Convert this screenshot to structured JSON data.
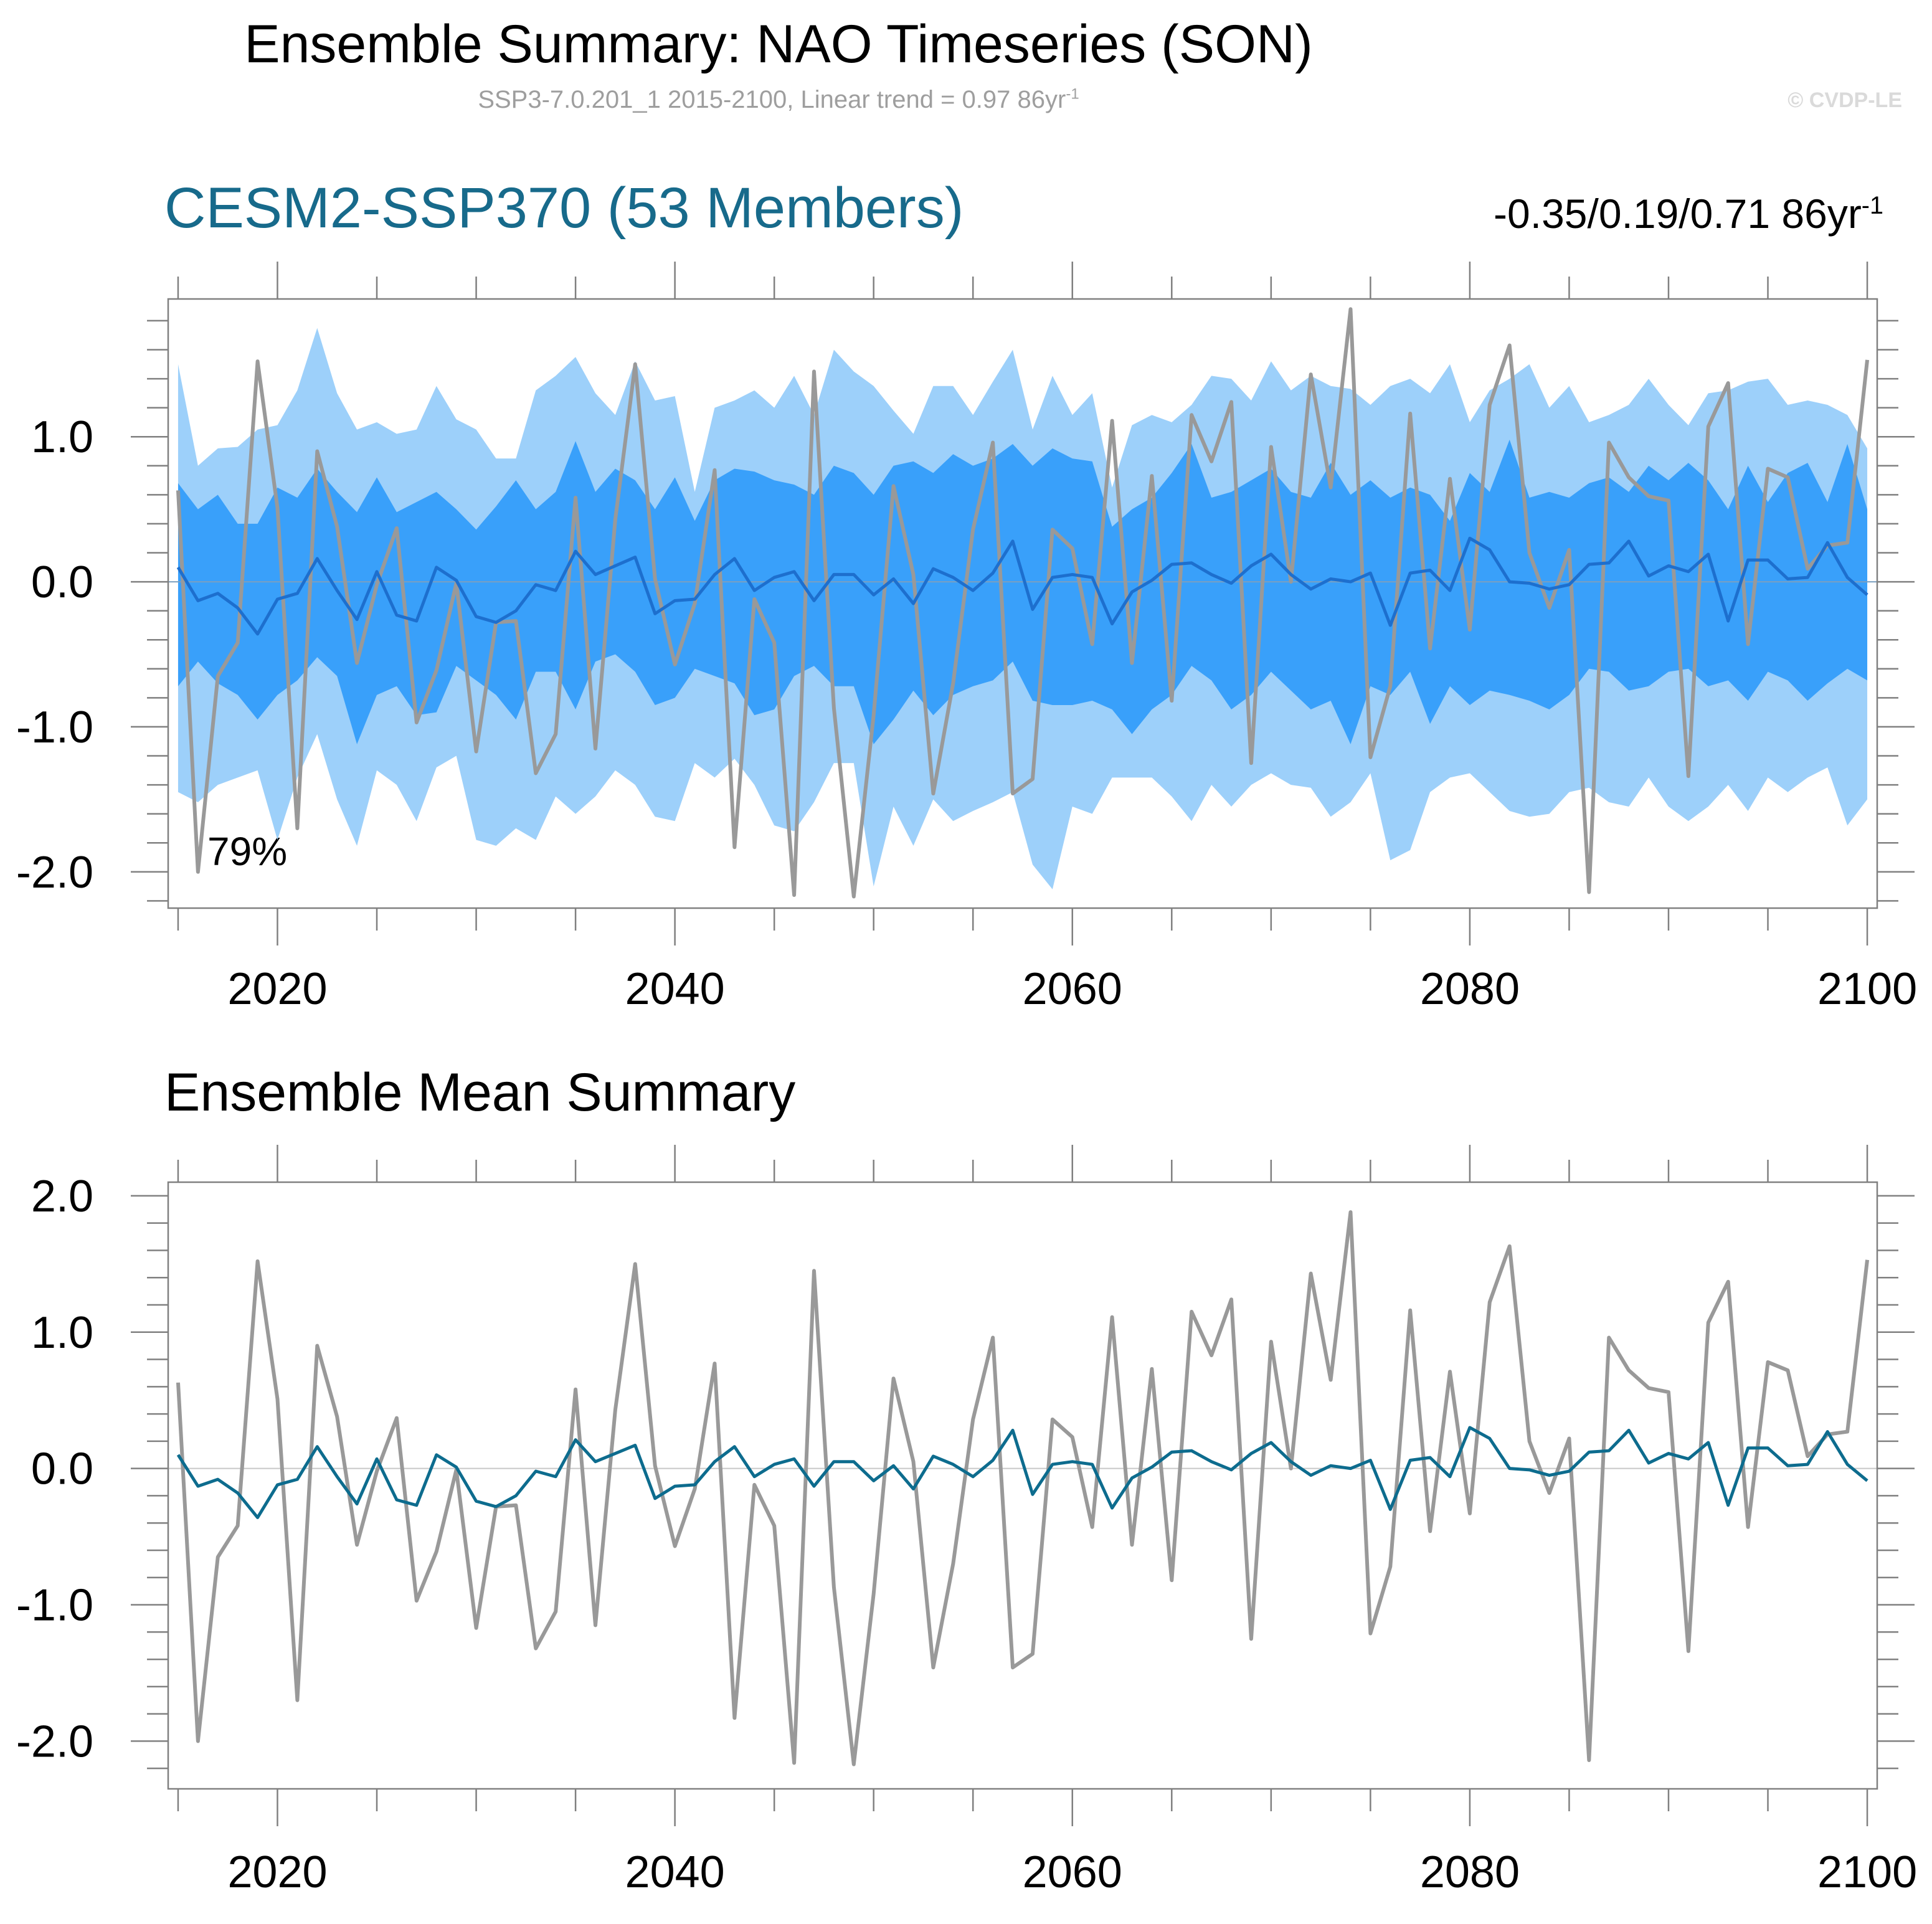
{
  "figure": {
    "title": "Ensemble Summary: NAO Timeseries (SON)",
    "subtitle": "SSP3-7.0.201_1 2015-2100, Linear trend = 0.97 86yr",
    "subtitle_unit_exp": "-1",
    "watermark": "© CVDP-LE"
  },
  "colors": {
    "band_outer": "#9dd0fa",
    "band_inner": "#39a0fa",
    "ens_mean_top": "#1d6fce",
    "ens_mean_bottom": "#0d6c8e",
    "obs": "#999999",
    "title_accent": "#176a8b"
  },
  "chart_data": [
    {
      "type": "area",
      "panel": "top",
      "title": "CESM2-SSP370 (53 Members)",
      "range_text": "-0.35/0.19/0.71 86yr",
      "range_unit_exp": "-1",
      "annotation": "79%",
      "x_tick_labels": [
        "2020",
        "2040",
        "2060",
        "2080",
        "2100"
      ],
      "y_tick_labels": [
        "1.0",
        "0.0",
        "-1.0",
        "-2.0"
      ],
      "x_ticks": [
        2020,
        2040,
        2060,
        2080,
        2100
      ],
      "y_ticks": [
        1.0,
        0.0,
        -1.0,
        -2.0
      ],
      "xlim": [
        2014.5,
        2100.5
      ],
      "ylim": [
        -2.25,
        1.95
      ],
      "x": [
        2015,
        2016,
        2017,
        2018,
        2019,
        2020,
        2021,
        2022,
        2023,
        2024,
        2025,
        2026,
        2027,
        2028,
        2029,
        2030,
        2031,
        2032,
        2033,
        2034,
        2035,
        2036,
        2037,
        2038,
        2039,
        2040,
        2041,
        2042,
        2043,
        2044,
        2045,
        2046,
        2047,
        2048,
        2049,
        2050,
        2051,
        2052,
        2053,
        2054,
        2055,
        2056,
        2057,
        2058,
        2059,
        2060,
        2061,
        2062,
        2063,
        2064,
        2065,
        2066,
        2067,
        2068,
        2069,
        2070,
        2071,
        2072,
        2073,
        2074,
        2075,
        2076,
        2077,
        2078,
        2079,
        2080,
        2081,
        2082,
        2083,
        2084,
        2085,
        2086,
        2087,
        2088,
        2089,
        2090,
        2091,
        2092,
        2093,
        2094,
        2095,
        2096,
        2097,
        2098,
        2099,
        2100
      ],
      "series": [
        {
          "name": "",
          "role": "outer band (min/max)",
          "upper": [
            1.5,
            0.8,
            0.92,
            0.93,
            1.05,
            1.08,
            1.32,
            1.75,
            1.3,
            1.05,
            1.1,
            1.02,
            1.05,
            1.35,
            1.12,
            1.05,
            0.85,
            0.85,
            1.32,
            1.42,
            1.55,
            1.3,
            1.15,
            1.52,
            1.25,
            1.28,
            0.62,
            1.2,
            1.25,
            1.32,
            1.2,
            1.42,
            1.15,
            1.6,
            1.45,
            1.35,
            1.18,
            1.02,
            1.35,
            1.35,
            1.15,
            1.38,
            1.6,
            1.05,
            1.42,
            1.15,
            1.3,
            0.65,
            1.08,
            1.15,
            1.1,
            1.22,
            1.42,
            1.4,
            1.25,
            1.52,
            1.32,
            1.42,
            1.35,
            1.33,
            1.22,
            1.35,
            1.4,
            1.3,
            1.5,
            1.1,
            1.32,
            1.4,
            1.5,
            1.2,
            1.35,
            1.1,
            1.15,
            1.22,
            1.4,
            1.22,
            1.08,
            1.3,
            1.32,
            1.38,
            1.4,
            1.22,
            1.25,
            1.22,
            1.15,
            0.92
          ],
          "lower": [
            -1.45,
            -1.52,
            -1.4,
            -1.35,
            -1.3,
            -1.78,
            -1.35,
            -1.05,
            -1.5,
            -1.82,
            -1.3,
            -1.4,
            -1.65,
            -1.28,
            -1.2,
            -1.78,
            -1.82,
            -1.7,
            -1.78,
            -1.48,
            -1.6,
            -1.48,
            -1.3,
            -1.4,
            -1.62,
            -1.65,
            -1.25,
            -1.35,
            -1.22,
            -1.4,
            -1.68,
            -1.72,
            -1.52,
            -1.25,
            -1.25,
            -2.1,
            -1.55,
            -1.82,
            -1.5,
            -1.65,
            -1.58,
            -1.52,
            -1.45,
            -1.95,
            -2.12,
            -1.55,
            -1.6,
            -1.35,
            -1.35,
            -1.35,
            -1.48,
            -1.65,
            -1.4,
            -1.55,
            -1.4,
            -1.32,
            -1.4,
            -1.42,
            -1.62,
            -1.52,
            -1.32,
            -1.92,
            -1.85,
            -1.45,
            -1.35,
            -1.32,
            -1.45,
            -1.58,
            -1.62,
            -1.6,
            -1.45,
            -1.42,
            -1.52,
            -1.55,
            -1.35,
            -1.55,
            -1.65,
            -1.55,
            -1.4,
            -1.58,
            -1.35,
            -1.45,
            -1.35,
            -1.28,
            -1.68,
            -1.5
          ]
        },
        {
          "name": "",
          "role": "inner band (10th-90th percentile)",
          "upper": [
            0.68,
            0.5,
            0.6,
            0.4,
            0.4,
            0.65,
            0.58,
            0.78,
            0.62,
            0.48,
            0.72,
            0.48,
            0.55,
            0.62,
            0.5,
            0.36,
            0.52,
            0.7,
            0.5,
            0.62,
            0.97,
            0.62,
            0.78,
            0.7,
            0.5,
            0.72,
            0.42,
            0.7,
            0.78,
            0.76,
            0.7,
            0.67,
            0.6,
            0.8,
            0.75,
            0.6,
            0.8,
            0.83,
            0.75,
            0.88,
            0.8,
            0.85,
            0.95,
            0.8,
            0.92,
            0.85,
            0.83,
            0.38,
            0.5,
            0.58,
            0.75,
            0.95,
            0.58,
            0.62,
            0.7,
            0.78,
            0.62,
            0.58,
            0.82,
            0.6,
            0.7,
            0.58,
            0.65,
            0.6,
            0.42,
            0.75,
            0.62,
            0.98,
            0.58,
            0.62,
            0.58,
            0.68,
            0.72,
            0.62,
            0.8,
            0.7,
            0.82,
            0.7,
            0.5,
            0.8,
            0.55,
            0.75,
            0.82,
            0.55,
            0.95,
            0.5
          ],
          "lower": [
            -0.72,
            -0.55,
            -0.7,
            -0.78,
            -0.95,
            -0.78,
            -0.68,
            -0.52,
            -0.65,
            -1.12,
            -0.78,
            -0.72,
            -0.92,
            -0.9,
            -0.58,
            -0.68,
            -0.78,
            -0.95,
            -0.62,
            -0.62,
            -0.88,
            -0.55,
            -0.5,
            -0.62,
            -0.85,
            -0.8,
            -0.6,
            -0.65,
            -0.7,
            -0.92,
            -0.88,
            -0.65,
            -0.58,
            -0.72,
            -0.72,
            -1.12,
            -0.95,
            -0.75,
            -0.92,
            -0.78,
            -0.72,
            -0.68,
            -0.55,
            -0.82,
            -0.85,
            -0.85,
            -0.82,
            -0.88,
            -1.05,
            -0.88,
            -0.78,
            -0.58,
            -0.68,
            -0.88,
            -0.78,
            -0.62,
            -0.75,
            -0.88,
            -0.82,
            -1.12,
            -0.72,
            -0.78,
            -0.62,
            -0.98,
            -0.72,
            -0.85,
            -0.75,
            -0.78,
            -0.82,
            -0.88,
            -0.78,
            -0.6,
            -0.62,
            -0.75,
            -0.72,
            -0.62,
            -0.6,
            -0.72,
            -0.68,
            -0.82,
            -0.62,
            -0.68,
            -0.82,
            -0.7,
            -0.6,
            -0.68
          ]
        },
        {
          "name": "",
          "role": "ensemble mean",
          "values": [
            0.1,
            -0.13,
            -0.08,
            -0.18,
            -0.36,
            -0.12,
            -0.08,
            0.16,
            -0.06,
            -0.26,
            0.07,
            -0.23,
            -0.27,
            0.1,
            0.01,
            -0.24,
            -0.28,
            -0.2,
            -0.02,
            -0.06,
            0.21,
            0.05,
            0.11,
            0.17,
            -0.22,
            -0.13,
            -0.12,
            0.05,
            0.16,
            -0.06,
            0.03,
            0.07,
            -0.13,
            0.05,
            0.05,
            -0.09,
            0.02,
            -0.15,
            0.09,
            0.03,
            -0.06,
            0.06,
            0.28,
            -0.19,
            0.03,
            0.05,
            0.03,
            -0.29,
            -0.07,
            0.01,
            0.12,
            0.13,
            0.05,
            -0.01,
            0.11,
            0.19,
            0.05,
            -0.05,
            0.02,
            0.0,
            0.06,
            -0.3,
            0.06,
            0.08,
            -0.06,
            0.3,
            0.22,
            0.0,
            -0.01,
            -0.05,
            -0.02,
            0.12,
            0.13,
            0.28,
            0.04,
            0.11,
            0.07,
            0.19,
            -0.27,
            0.15,
            0.15,
            0.02,
            0.03,
            0.27,
            0.03,
            -0.09
          ]
        },
        {
          "name": "",
          "role": "observations",
          "values": [
            0.63,
            -2.0,
            -0.65,
            -0.42,
            1.52,
            0.51,
            -1.7,
            0.9,
            0.38,
            -0.56,
            -0.02,
            0.37,
            -0.97,
            -0.61,
            -0.01,
            -1.17,
            -0.28,
            -0.27,
            -1.32,
            -1.05,
            0.58,
            -1.15,
            0.43,
            1.5,
            0.02,
            -0.57,
            -0.15,
            0.77,
            -1.83,
            -0.12,
            -0.42,
            -2.16,
            1.45,
            -0.87,
            -2.17,
            -0.92,
            0.66,
            0.05,
            -1.46,
            -0.7,
            0.36,
            0.96,
            -1.46,
            -1.36,
            0.36,
            0.23,
            -0.43,
            1.11,
            -0.56,
            0.73,
            -0.82,
            1.15,
            0.83,
            1.24,
            -1.25,
            0.93,
            0.0,
            1.43,
            0.65,
            1.88,
            -1.21,
            -0.72,
            1.16,
            -0.46,
            0.71,
            -0.33,
            1.22,
            1.63,
            0.2,
            -0.18,
            0.22,
            -2.14,
            0.96,
            0.72,
            0.59,
            0.56,
            -1.34,
            1.07,
            1.37,
            -0.43,
            0.78,
            0.72,
            0.09,
            0.25,
            0.27,
            1.53
          ]
        }
      ]
    },
    {
      "type": "line",
      "panel": "bottom",
      "title": "Ensemble Mean Summary",
      "x_tick_labels": [
        "2020",
        "2040",
        "2060",
        "2080",
        "2100"
      ],
      "y_tick_labels": [
        "2.0",
        "1.0",
        "0.0",
        "-1.0",
        "-2.0"
      ],
      "x_ticks": [
        2020,
        2040,
        2060,
        2080,
        2100
      ],
      "y_ticks": [
        2.0,
        1.0,
        0.0,
        -1.0,
        -2.0
      ],
      "xlim": [
        2014.5,
        2100.5
      ],
      "ylim": [
        -2.35,
        2.1
      ]
    }
  ]
}
